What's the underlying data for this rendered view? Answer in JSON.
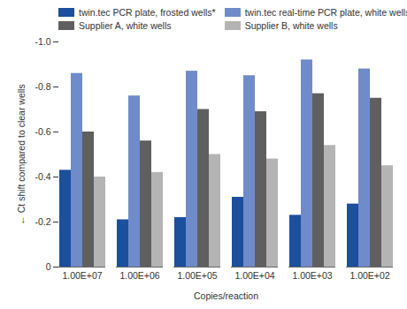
{
  "chart_data": {
    "type": "bar",
    "categories": [
      "1.00E+07",
      "1.00E+06",
      "1.00E+05",
      "1.00E+04",
      "1.00E+03",
      "1.00E+02"
    ],
    "series": [
      {
        "name": "twin.tec PCR plate, frosted wells*",
        "color": "#1c4f9c",
        "values": [
          -0.43,
          -0.21,
          -0.22,
          -0.31,
          -0.23,
          -0.28
        ]
      },
      {
        "name": "twin.tec real-time PCR plate, white wells*",
        "color": "#6f8bc9",
        "values": [
          -0.86,
          -0.76,
          -0.87,
          -0.85,
          -0.92,
          -0.88
        ]
      },
      {
        "name": "Supplier A, white wells",
        "color": "#5f5f5f",
        "values": [
          -0.6,
          -0.56,
          -0.7,
          -0.69,
          -0.77,
          -0.75
        ]
      },
      {
        "name": "Supplier B, white wells",
        "color": "#b4b4b4",
        "values": [
          -0.4,
          -0.42,
          -0.5,
          -0.48,
          -0.54,
          -0.45
        ]
      }
    ],
    "x_label": "Copies/reaction",
    "y_label": "Ct shift compared to clear wells",
    "ylim": [
      0,
      -1
    ],
    "yticks": [
      0,
      -0.2,
      -0.4,
      -0.6,
      -0.8,
      {
        "value": -1,
        "label": "-1.0"
      }
    ],
    "grid": false,
    "legend": "top"
  }
}
